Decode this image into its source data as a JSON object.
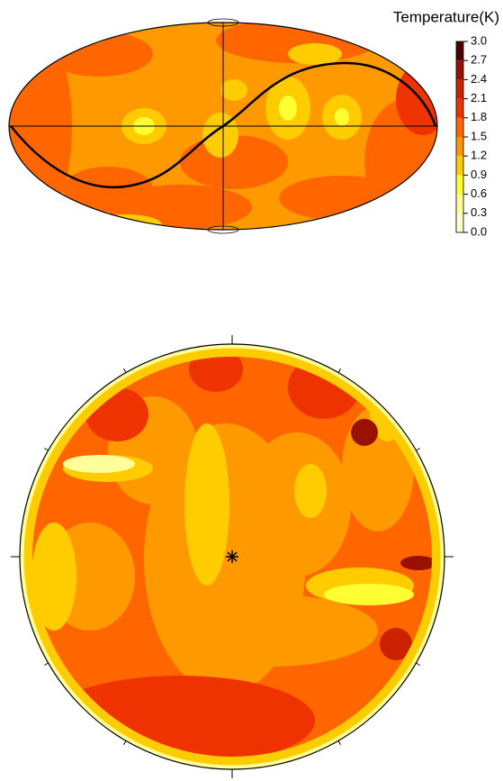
{
  "chart_data": {
    "type": "sky-map",
    "colorbar_title": "Temperature(K)",
    "clim": [
      0,
      3
    ],
    "cticks": [
      {
        "value": 0,
        "label": "0.0"
      },
      0.3,
      0.6,
      0.9,
      1.2,
      1.5,
      1.8,
      2.1,
      2.4,
      2.7,
      {
        "value": 3,
        "label": "3.0"
      }
    ],
    "colors": [
      "#ffffcc",
      "#ffff99",
      "#ffff33",
      "#ffcc00",
      "#ff9900",
      "#ff6600",
      "#ee3300",
      "#cc2200",
      "#991100",
      "#4d0000"
    ]
  }
}
